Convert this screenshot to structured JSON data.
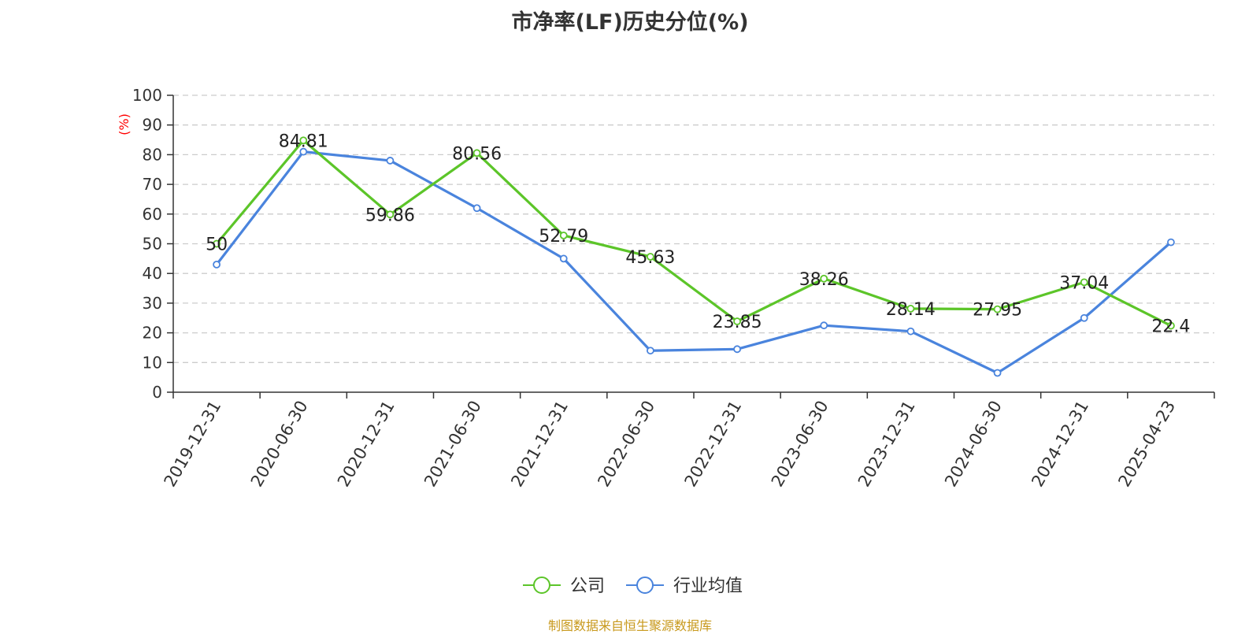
{
  "chart_data": {
    "type": "line",
    "title": "市净率(LF)历史分位(%)",
    "ylabel": "(%)",
    "ylim": [
      0,
      100
    ],
    "yticks": [
      0,
      10,
      20,
      30,
      40,
      50,
      60,
      70,
      80,
      90,
      100
    ],
    "grid": true,
    "legend_position": "bottom",
    "categories": [
      "2019-12-31",
      "2020-06-30",
      "2020-12-31",
      "2021-06-30",
      "2021-12-31",
      "2022-06-30",
      "2022-12-31",
      "2023-06-30",
      "2023-12-31",
      "2024-06-30",
      "2024-12-31",
      "2025-04-23"
    ],
    "series": [
      {
        "name": "公司",
        "color": "#5cc529",
        "show_labels": true,
        "values": [
          50,
          84.81,
          59.86,
          80.56,
          52.79,
          45.63,
          23.85,
          38.26,
          28.14,
          27.95,
          37.04,
          22.4
        ]
      },
      {
        "name": "行业均值",
        "color": "#4a84dd",
        "show_labels": false,
        "values": [
          43,
          81,
          78,
          62,
          45,
          14,
          14.5,
          22.5,
          20.5,
          6.5,
          25,
          50.5
        ]
      }
    ]
  },
  "source_text": "制图数据来自恒生聚源数据库",
  "colors": {
    "axis": "#333333",
    "grid": "#cccccc",
    "ylabel": "#ff0000",
    "source": "#c8991c"
  }
}
